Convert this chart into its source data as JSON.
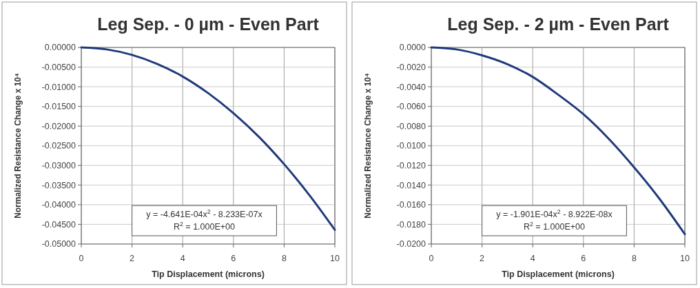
{
  "chart_data": [
    {
      "type": "line",
      "title": "Leg Sep. - 0 µm - Even Part",
      "xlabel": "Tip Displacement (microns)",
      "ylabel": "Normalized Resistance Change x 10⁴",
      "x": [
        0,
        1,
        2,
        3,
        4,
        5,
        6,
        7,
        8,
        9,
        10
      ],
      "series": [
        {
          "color": "#1f3a7a",
          "values": [
            0,
            -0.0005,
            -0.0019,
            -0.0042,
            -0.0074,
            -0.0116,
            -0.0167,
            -0.0227,
            -0.0297,
            -0.0376,
            -0.0464
          ]
        }
      ],
      "xlim": [
        0,
        10
      ],
      "xticks": [
        0,
        2,
        4,
        6,
        8,
        10
      ],
      "ylim": [
        -0.05,
        0
      ],
      "yticks": [
        {
          "value": 0,
          "label": "0.00000"
        },
        {
          "value": -0.005,
          "label": "-0.00500"
        },
        {
          "value": -0.01,
          "label": "-0.01000"
        },
        {
          "value": -0.015,
          "label": "-0.01500"
        },
        {
          "value": -0.02,
          "label": "-0.02000"
        },
        {
          "value": -0.025,
          "label": "-0.02500"
        },
        {
          "value": -0.03,
          "label": "-0.03000"
        },
        {
          "value": -0.035,
          "label": "-0.03500"
        },
        {
          "value": -0.04,
          "label": "-0.04000"
        },
        {
          "value": -0.045,
          "label": "-0.04500"
        },
        {
          "value": -0.05,
          "label": "-0.05000"
        }
      ],
      "annotations": [
        "y = -4.641E-04x$^{2}$ - 8.233E-07x",
        "R$^{2}$ = 1.000E+00"
      ],
      "grid": true
    },
    {
      "type": "line",
      "title": "Leg Sep. - 2 µm - Even Part",
      "xlabel": "Tip Displacement (microns)",
      "ylabel": "Normalized Resistance Change x 10⁴",
      "x": [
        0,
        1,
        2,
        3,
        4,
        5,
        6,
        7,
        8,
        9,
        10
      ],
      "series": [
        {
          "color": "#1f3a7a",
          "values": [
            0,
            -0.0002,
            -0.0008,
            -0.0017,
            -0.003,
            -0.0048,
            -0.0068,
            -0.0093,
            -0.0122,
            -0.0154,
            -0.019
          ]
        }
      ],
      "xlim": [
        0,
        10
      ],
      "xticks": [
        0,
        2,
        4,
        6,
        8,
        10
      ],
      "ylim": [
        -0.02,
        0
      ],
      "yticks": [
        {
          "value": 0,
          "label": "0.0000"
        },
        {
          "value": -0.002,
          "label": "-0.0020"
        },
        {
          "value": -0.004,
          "label": "-0.0040"
        },
        {
          "value": -0.006,
          "label": "-0.0060"
        },
        {
          "value": -0.008,
          "label": "-0.0080"
        },
        {
          "value": -0.01,
          "label": "-0.0100"
        },
        {
          "value": -0.012,
          "label": "-0.0120"
        },
        {
          "value": -0.014,
          "label": "-0.0140"
        },
        {
          "value": -0.016,
          "label": "-0.0160"
        },
        {
          "value": -0.018,
          "label": "-0.0180"
        },
        {
          "value": -0.02,
          "label": "-0.0200"
        }
      ],
      "annotations": [
        "y = -1.901E-04x$^{2}$ - 8.922E-08x",
        "R$^{2}$ = 1.000E+00"
      ],
      "grid": true
    }
  ]
}
